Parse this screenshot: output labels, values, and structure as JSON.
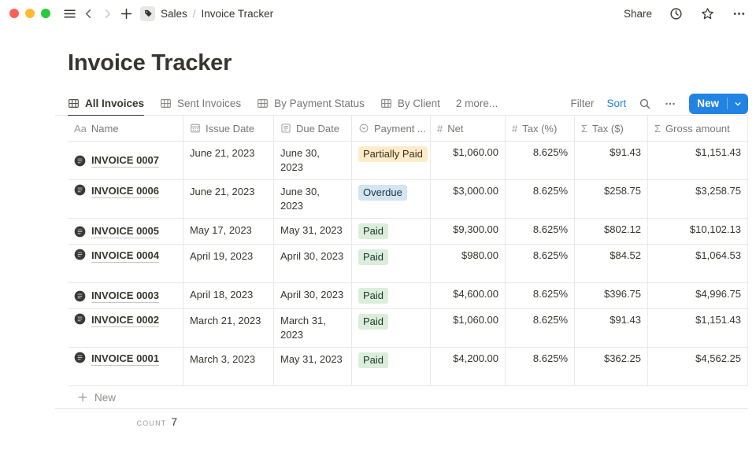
{
  "topbar": {
    "share_label": "Share",
    "breadcrumb": {
      "workspace": "Sales",
      "separator": "/",
      "page": "Invoice Tracker"
    }
  },
  "page": {
    "title": "Invoice Tracker"
  },
  "tabs": {
    "items": [
      {
        "label": "All Invoices",
        "slug": "all-invoices",
        "active": true
      },
      {
        "label": "Sent Invoices",
        "slug": "sent-invoices",
        "active": false
      },
      {
        "label": "By Payment Status",
        "slug": "by-payment-status",
        "active": false
      },
      {
        "label": "By Client",
        "slug": "by-client",
        "active": false
      }
    ],
    "more_label": "2 more..."
  },
  "toolbar": {
    "filter_label": "Filter",
    "sort_label": "Sort",
    "new_label": "New"
  },
  "table": {
    "columns": [
      {
        "key": "name",
        "label": "Name",
        "icon": "aa"
      },
      {
        "key": "issue",
        "label": "Issue Date",
        "icon": "calendar"
      },
      {
        "key": "due",
        "label": "Due Date",
        "icon": "page"
      },
      {
        "key": "status",
        "label": "Payment ...",
        "icon": "select"
      },
      {
        "key": "net",
        "label": "Net",
        "icon": "hash"
      },
      {
        "key": "taxpct",
        "label": "Tax (%)",
        "icon": "hash"
      },
      {
        "key": "taxusd",
        "label": "Tax ($)",
        "icon": "sigma"
      },
      {
        "key": "gross",
        "label": "Gross amount",
        "icon": "sigma"
      }
    ],
    "rows": [
      {
        "name": "INVOICE 0007",
        "issue": "June 21, 2023",
        "due": "June 30, 2023",
        "status": "Partially Paid",
        "status_color": "yellow",
        "net": "$1,060.00",
        "taxpct": "8.625%",
        "taxusd": "$91.43",
        "gross": "$1,151.43",
        "tall": false
      },
      {
        "name": "INVOICE 0006",
        "issue": "June 21, 2023",
        "due": "June 30, 2023",
        "status": "Overdue",
        "status_color": "blue",
        "net": "$3,000.00",
        "taxpct": "8.625%",
        "taxusd": "$258.75",
        "gross": "$3,258.75",
        "tall": true
      },
      {
        "name": "INVOICE 0005",
        "issue": "May 17, 2023",
        "due": "May 31, 2023",
        "status": "Paid",
        "status_color": "green",
        "net": "$9,300.00",
        "taxpct": "8.625%",
        "taxusd": "$802.12",
        "gross": "$10,102.13",
        "tall": false
      },
      {
        "name": "INVOICE 0004",
        "issue": "April 19, 2023",
        "due": "April 30, 2023",
        "status": "Paid",
        "status_color": "green",
        "net": "$980.00",
        "taxpct": "8.625%",
        "taxusd": "$84.52",
        "gross": "$1,064.53",
        "tall": true
      },
      {
        "name": "INVOICE 0003",
        "issue": "April 18, 2023",
        "due": "April 30, 2023",
        "status": "Paid",
        "status_color": "green",
        "net": "$4,600.00",
        "taxpct": "8.625%",
        "taxusd": "$396.75",
        "gross": "$4,996.75",
        "tall": false
      },
      {
        "name": "INVOICE 0002",
        "issue": "March 21, 2023",
        "due": "March 31, 2023",
        "status": "Paid",
        "status_color": "green",
        "net": "$1,060.00",
        "taxpct": "8.625%",
        "taxusd": "$91.43",
        "gross": "$1,151.43",
        "tall": true
      },
      {
        "name": "INVOICE 0001",
        "issue": "March 3, 2023",
        "due": "May 31, 2023",
        "status": "Paid",
        "status_color": "green",
        "net": "$4,200.00",
        "taxpct": "8.625%",
        "taxusd": "$362.25",
        "gross": "$4,562.25",
        "tall": true
      }
    ],
    "new_row_label": "New",
    "count_label": "COUNT",
    "count_value": "7"
  },
  "colors": {
    "accent_blue": "#2383e2",
    "text": "#37352f",
    "muted": "#787774",
    "border": "#e9e9e7",
    "traffic_red": "#fe5f57",
    "traffic_yellow": "#febc2e",
    "traffic_green": "#28c840",
    "tag_colors": {
      "yellow": {
        "bg": "#fdecc8",
        "text": "#402c1b"
      },
      "blue": {
        "bg": "#d3e5ef",
        "text": "#183347"
      },
      "green": {
        "bg": "#dbeddb",
        "text": "#1c3829"
      }
    }
  },
  "icons": {
    "tab_view": "table-grid",
    "name_column": "Aa",
    "number_column": "#",
    "formula_column": "Σ",
    "new_row_plus": "+",
    "more_menu": "•••"
  }
}
